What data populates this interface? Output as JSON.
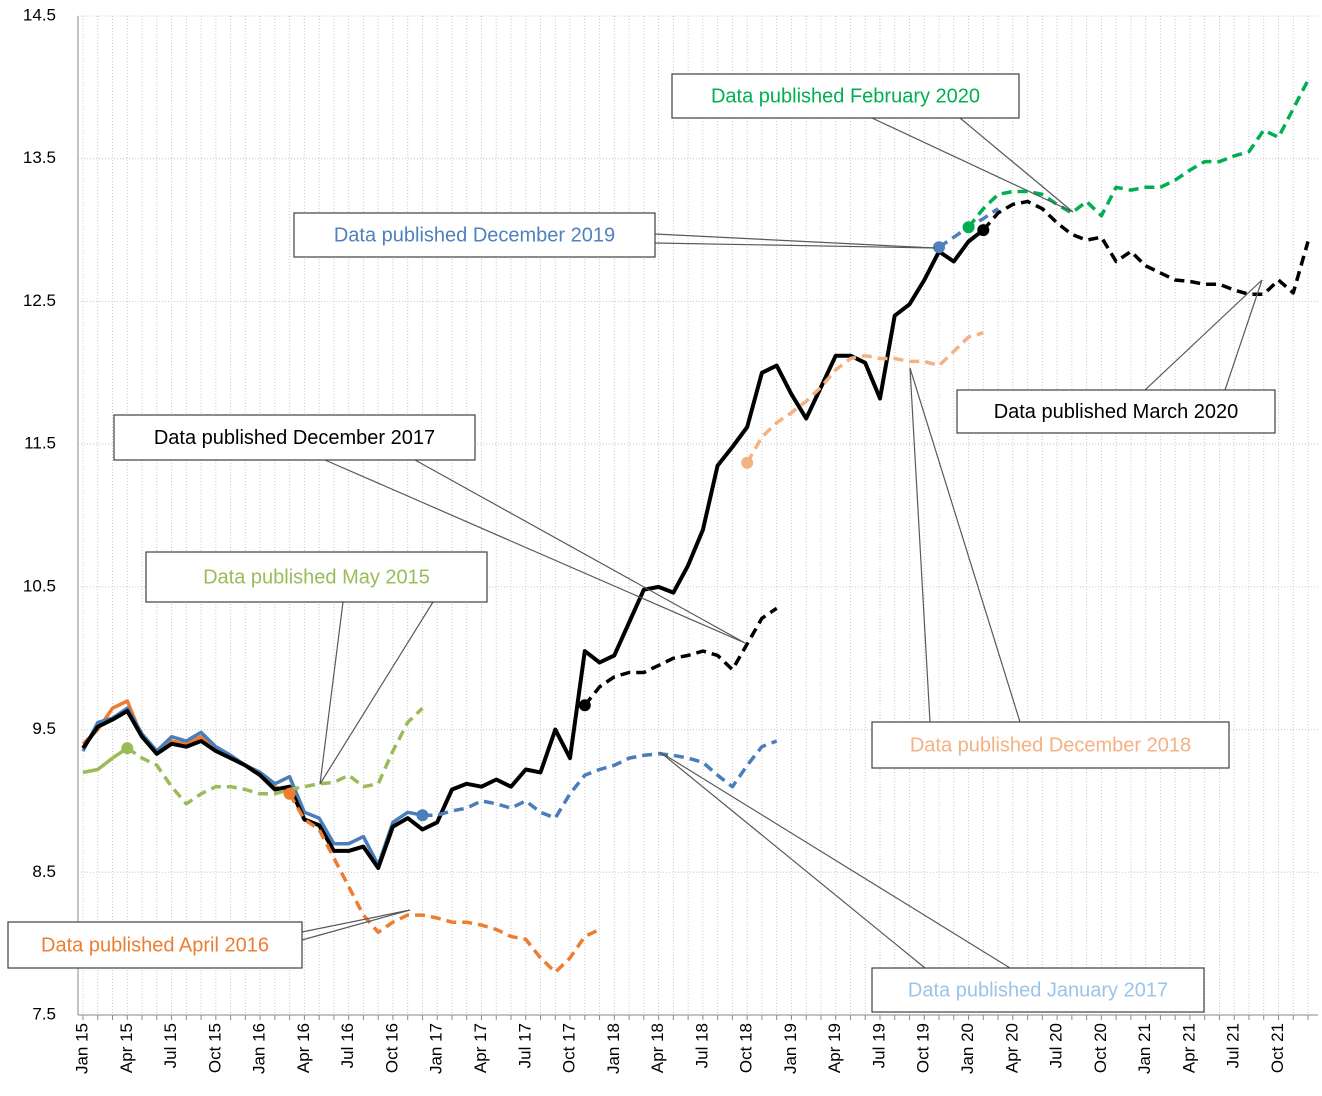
{
  "chart_data": {
    "type": "line",
    "categories": [
      "Jan 15",
      null,
      null,
      "Apr 15",
      null,
      null,
      "Jul 15",
      null,
      null,
      "Oct 15",
      null,
      null,
      "Jan 16",
      null,
      null,
      "Apr 16",
      null,
      null,
      "Jul 16",
      null,
      null,
      "Oct 16",
      null,
      null,
      "Jan 17",
      null,
      null,
      "Apr 17",
      null,
      null,
      "Jul 17",
      null,
      null,
      "Oct 17",
      null,
      null,
      "Jan 18",
      null,
      null,
      "Apr 18",
      null,
      null,
      "Jul 18",
      null,
      null,
      "Oct 18",
      null,
      null,
      "Jan 19",
      null,
      null,
      "Apr 19",
      null,
      null,
      "Jul 19",
      null,
      null,
      "Oct 19",
      null,
      null,
      "Jan 20",
      null,
      null,
      "Apr 20",
      null,
      null,
      "Jul 20",
      null,
      null,
      "Oct 20",
      null,
      null,
      "Jan 21",
      null,
      null,
      "Apr 21",
      null,
      null,
      "Jul 21",
      null,
      null,
      "Oct 21",
      null,
      null
    ],
    "ylim": [
      7.5,
      14.5
    ],
    "yticks": [
      7.5,
      8.5,
      9.5,
      10.5,
      11.5,
      12.5,
      13.5,
      14.5
    ],
    "grid": true,
    "series": [
      {
        "name": "Data published May 2015",
        "color": "#9bbb59",
        "label_color": "#9bbb59",
        "values": [
          9.2,
          9.22,
          9.3,
          9.37,
          null,
          null,
          null,
          null,
          null,
          null,
          null,
          null,
          null,
          null,
          null,
          null,
          null,
          null,
          null,
          null,
          null,
          null,
          null,
          null,
          null,
          null,
          null,
          null,
          null,
          null,
          null,
          null,
          null,
          null,
          null,
          null,
          null,
          null,
          null,
          null,
          null,
          null,
          null,
          null,
          null,
          null,
          null,
          null,
          null,
          null,
          null,
          null,
          null,
          null,
          null,
          null,
          null,
          null,
          null,
          null,
          null,
          null,
          null,
          null,
          null,
          null,
          null,
          null,
          null,
          null,
          null,
          null,
          null,
          null,
          null,
          null,
          null,
          null,
          null,
          null,
          null,
          null,
          null,
          null
        ],
        "forecast": [
          null,
          null,
          null,
          9.37,
          9.3,
          9.25,
          9.1,
          8.98,
          9.05,
          9.1,
          9.1,
          9.08,
          9.05,
          9.05,
          9.08,
          9.1,
          9.12,
          9.13,
          9.18,
          9.1,
          9.12,
          9.35,
          9.55,
          9.65,
          null,
          null,
          null,
          null,
          null,
          null,
          null,
          null,
          null,
          null,
          null,
          null,
          null,
          null,
          null,
          null,
          null,
          null,
          null,
          null,
          null,
          null,
          null,
          null,
          null,
          null,
          null,
          null,
          null,
          null,
          null,
          null,
          null,
          null,
          null,
          null,
          null,
          null,
          null,
          null,
          null,
          null,
          null,
          null,
          null,
          null,
          null,
          null,
          null,
          null,
          null,
          null,
          null,
          null,
          null,
          null,
          null,
          null,
          null,
          null
        ]
      },
      {
        "name": "Data published April 2016",
        "color": "#ed7d31",
        "label_color": "#ed7d31",
        "values": [
          9.4,
          9.5,
          9.65,
          9.7,
          9.45,
          9.35,
          9.42,
          9.4,
          9.45,
          9.35,
          9.3,
          9.25,
          9.2,
          9.1,
          9.05,
          null,
          null,
          null,
          null,
          null,
          null,
          null,
          null,
          null,
          null,
          null,
          null,
          null,
          null,
          null,
          null,
          null,
          null,
          null,
          null,
          null,
          null,
          null,
          null,
          null,
          null,
          null,
          null,
          null,
          null,
          null,
          null,
          null,
          null,
          null,
          null,
          null,
          null,
          null,
          null,
          null,
          null,
          null,
          null,
          null,
          null,
          null,
          null,
          null,
          null,
          null,
          null,
          null,
          null,
          null,
          null,
          null,
          null,
          null,
          null,
          null,
          null,
          null,
          null,
          null,
          null,
          null,
          null,
          null
        ],
        "forecast": [
          null,
          null,
          null,
          null,
          null,
          null,
          null,
          null,
          null,
          null,
          null,
          null,
          null,
          null,
          9.05,
          8.87,
          8.8,
          8.6,
          8.4,
          8.2,
          8.08,
          8.15,
          8.2,
          8.2,
          8.18,
          8.15,
          8.15,
          8.13,
          8.1,
          8.05,
          8.03,
          7.9,
          7.8,
          7.9,
          8.05,
          8.1,
          null,
          null,
          null,
          null,
          null,
          null,
          null,
          null,
          null,
          null,
          null,
          null,
          null,
          null,
          null,
          null,
          null,
          null,
          null,
          null,
          null,
          null,
          null,
          null,
          null,
          null,
          null,
          null,
          null,
          null,
          null,
          null,
          null,
          null,
          null,
          null,
          null,
          null,
          null,
          null,
          null,
          null,
          null,
          null,
          null,
          null,
          null,
          null
        ]
      },
      {
        "name": "Data published January 2017",
        "color": "#4a7ebb",
        "label_color": "#9dc3e6",
        "values": [
          9.35,
          9.55,
          9.58,
          9.65,
          9.47,
          9.35,
          9.45,
          9.42,
          9.48,
          9.38,
          9.32,
          9.25,
          9.2,
          9.12,
          9.17,
          8.92,
          8.88,
          8.7,
          8.7,
          8.75,
          8.55,
          8.85,
          8.92,
          8.9,
          null,
          null,
          null,
          null,
          null,
          null,
          null,
          null,
          null,
          null,
          null,
          null,
          null,
          null,
          null,
          null,
          null,
          null,
          null,
          null,
          null,
          null,
          null,
          null,
          null,
          null,
          null,
          null,
          null,
          null,
          null,
          null,
          null,
          null,
          null,
          null,
          null,
          null,
          null,
          null,
          null,
          null,
          null,
          null,
          null,
          null,
          null,
          null,
          null,
          null,
          null,
          null,
          null,
          null,
          null,
          null,
          null,
          null,
          null,
          null
        ],
        "forecast": [
          null,
          null,
          null,
          null,
          null,
          null,
          null,
          null,
          null,
          null,
          null,
          null,
          null,
          null,
          null,
          null,
          null,
          null,
          null,
          null,
          null,
          null,
          null,
          8.9,
          8.9,
          8.93,
          8.95,
          9.0,
          8.98,
          8.95,
          9.0,
          8.92,
          8.88,
          9.05,
          9.18,
          9.22,
          9.25,
          9.3,
          9.32,
          9.33,
          9.32,
          9.3,
          9.27,
          9.18,
          9.1,
          9.25,
          9.38,
          9.42,
          null,
          null,
          null,
          null,
          null,
          null,
          null,
          null,
          null,
          null,
          null,
          null,
          null,
          null,
          null,
          null,
          null,
          null,
          null,
          null,
          null,
          null,
          null,
          null,
          null,
          null,
          null,
          null,
          null,
          null,
          null,
          null,
          null,
          null,
          null,
          null
        ]
      },
      {
        "name": "Data published December 2017",
        "color": "#000000",
        "label_color": "#000000",
        "forecast": [
          null,
          null,
          null,
          null,
          null,
          null,
          null,
          null,
          null,
          null,
          null,
          null,
          null,
          null,
          null,
          null,
          null,
          null,
          null,
          null,
          null,
          null,
          null,
          null,
          null,
          null,
          null,
          null,
          null,
          null,
          null,
          null,
          null,
          null,
          9.67,
          9.8,
          9.87,
          9.9,
          9.9,
          9.95,
          10.0,
          10.02,
          10.05,
          10.02,
          9.92,
          10.1,
          10.28,
          10.35,
          null,
          null,
          null,
          null,
          null,
          null,
          null,
          null,
          null,
          null,
          null,
          null,
          null,
          null,
          null,
          null,
          null,
          null,
          null,
          null,
          null,
          null,
          null,
          null,
          null,
          null,
          null,
          null,
          null,
          null,
          null,
          null,
          null,
          null,
          null,
          null
        ]
      },
      {
        "name": "Data published December 2018",
        "color": "#f4b183",
        "label_color": "#f4b183",
        "forecast": [
          null,
          null,
          null,
          null,
          null,
          null,
          null,
          null,
          null,
          null,
          null,
          null,
          null,
          null,
          null,
          null,
          null,
          null,
          null,
          null,
          null,
          null,
          null,
          null,
          null,
          null,
          null,
          null,
          null,
          null,
          null,
          null,
          null,
          null,
          null,
          null,
          null,
          null,
          null,
          null,
          null,
          null,
          null,
          null,
          null,
          11.37,
          11.55,
          11.65,
          11.72,
          11.8,
          11.9,
          12.02,
          12.1,
          12.12,
          12.1,
          12.1,
          12.08,
          12.08,
          12.05,
          12.15,
          12.25,
          12.28,
          null,
          null,
          null,
          null,
          null,
          null,
          null,
          null,
          null,
          null,
          null,
          null,
          null,
          null,
          null,
          null,
          null,
          null,
          null,
          null,
          null,
          null
        ]
      },
      {
        "name": "Data published December 2019",
        "color": "#4f81bd",
        "label_color": "#4f81bd",
        "forecast": [
          null,
          null,
          null,
          null,
          null,
          null,
          null,
          null,
          null,
          null,
          null,
          null,
          null,
          null,
          null,
          null,
          null,
          null,
          null,
          null,
          null,
          null,
          null,
          null,
          null,
          null,
          null,
          null,
          null,
          null,
          null,
          null,
          null,
          null,
          null,
          null,
          null,
          null,
          null,
          null,
          null,
          null,
          null,
          null,
          null,
          null,
          null,
          null,
          null,
          null,
          null,
          null,
          null,
          null,
          null,
          null,
          null,
          null,
          12.88,
          12.95,
          13.02,
          13.08,
          13.15,
          null,
          null,
          null,
          null,
          null,
          null,
          null,
          null,
          null,
          null,
          null,
          null,
          null,
          null,
          null,
          null,
          null,
          null,
          null,
          null,
          null
        ]
      },
      {
        "name": "Data published February 2020",
        "color": "#00b050",
        "label_color": "#00b050",
        "forecast": [
          null,
          null,
          null,
          null,
          null,
          null,
          null,
          null,
          null,
          null,
          null,
          null,
          null,
          null,
          null,
          null,
          null,
          null,
          null,
          null,
          null,
          null,
          null,
          null,
          null,
          null,
          null,
          null,
          null,
          null,
          null,
          null,
          null,
          null,
          null,
          null,
          null,
          null,
          null,
          null,
          null,
          null,
          null,
          null,
          null,
          null,
          null,
          null,
          null,
          null,
          null,
          null,
          null,
          null,
          null,
          null,
          null,
          null,
          null,
          null,
          13.02,
          13.15,
          13.25,
          13.27,
          13.27,
          13.25,
          13.18,
          13.12,
          13.2,
          13.1,
          13.3,
          13.28,
          13.3,
          13.3,
          13.35,
          13.42,
          13.48,
          13.48,
          13.52,
          13.55,
          13.7,
          13.65,
          13.85,
          14.05
        ]
      },
      {
        "name": "Data published March 2020",
        "color": "#000000",
        "label_color": "#000000",
        "values": [
          9.37,
          9.52,
          9.57,
          9.63,
          9.45,
          9.33,
          9.4,
          9.38,
          9.42,
          9.35,
          9.3,
          9.25,
          9.18,
          9.08,
          9.1,
          8.87,
          8.83,
          8.65,
          8.65,
          8.68,
          8.53,
          8.82,
          8.88,
          8.8,
          8.85,
          9.08,
          9.12,
          9.1,
          9.15,
          9.1,
          9.22,
          9.2,
          9.5,
          9.3,
          10.05,
          9.97,
          10.02,
          10.25,
          10.48,
          10.5,
          10.46,
          10.65,
          10.9,
          11.35,
          11.48,
          11.62,
          12.0,
          12.05,
          11.85,
          11.68,
          11.9,
          12.12,
          12.12,
          12.07,
          11.82,
          12.4,
          12.48,
          12.65,
          12.85,
          12.78,
          12.92,
          13.0,
          null,
          null,
          null,
          null,
          null,
          null,
          null,
          null,
          null,
          null,
          null,
          null,
          null,
          null,
          null,
          null,
          null,
          null,
          null,
          null,
          null,
          null
        ],
        "forecast": [
          null,
          null,
          null,
          null,
          null,
          null,
          null,
          null,
          null,
          null,
          null,
          null,
          null,
          null,
          null,
          null,
          null,
          null,
          null,
          null,
          null,
          null,
          null,
          null,
          null,
          null,
          null,
          null,
          null,
          null,
          null,
          null,
          null,
          null,
          null,
          null,
          null,
          null,
          null,
          null,
          null,
          null,
          null,
          null,
          null,
          null,
          null,
          null,
          null,
          null,
          null,
          null,
          null,
          null,
          null,
          null,
          null,
          null,
          null,
          null,
          null,
          13.0,
          13.12,
          13.18,
          13.2,
          13.15,
          13.05,
          12.97,
          12.93,
          12.95,
          12.78,
          12.85,
          12.75,
          12.7,
          12.65,
          12.64,
          12.62,
          12.62,
          12.58,
          12.55,
          12.55,
          12.65,
          12.56,
          12.92
        ]
      }
    ]
  }
}
